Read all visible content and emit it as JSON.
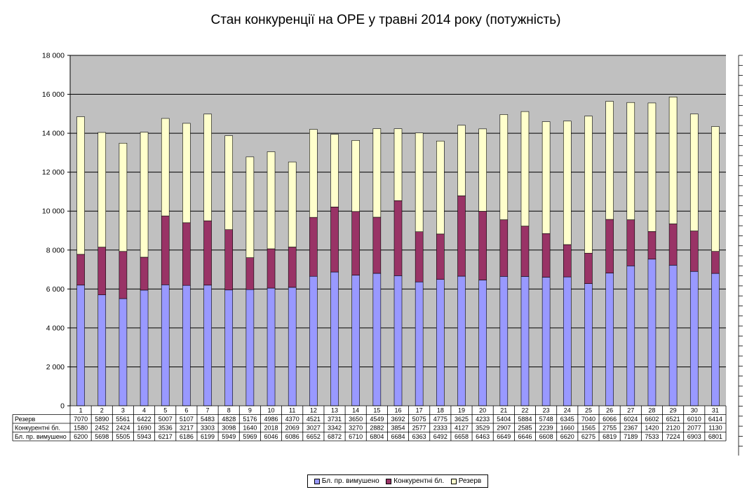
{
  "chart_data": {
    "type": "bar",
    "stacked": true,
    "title": "Стан конкуренції на ОРЕ  у травні 2014 року (потужність)",
    "categories": [
      "1",
      "2",
      "3",
      "4",
      "5",
      "6",
      "7",
      "8",
      "9",
      "10",
      "11",
      "12",
      "13",
      "14",
      "15",
      "16",
      "17",
      "18",
      "19",
      "20",
      "21",
      "22",
      "23",
      "24",
      "25",
      "26",
      "27",
      "28",
      "29",
      "30",
      "31"
    ],
    "series": [
      {
        "name": "Бл. пр. вимушено",
        "color": "#9999FF",
        "values": [
          6200,
          5698,
          5505,
          5943,
          6217,
          6186,
          6199,
          5949,
          5969,
          6046,
          6086,
          6652,
          6872,
          6710,
          6804,
          6684,
          6363,
          6492,
          6658,
          6463,
          6649,
          6646,
          6608,
          6620,
          6275,
          6819,
          7189,
          7533,
          7224,
          6903,
          6801
        ]
      },
      {
        "name": "Конкурентні бл.",
        "color": "#993366",
        "values": [
          1580,
          2452,
          2424,
          1690,
          3536,
          3217,
          3303,
          3098,
          1640,
          2018,
          2069,
          3027,
          3342,
          3270,
          2882,
          3854,
          2577,
          2333,
          4127,
          3529,
          2907,
          2585,
          2239,
          1660,
          1565,
          2755,
          2367,
          1420,
          2120,
          2077,
          1130
        ]
      },
      {
        "name": "Резерв",
        "color": "#FFFFCC",
        "values": [
          7070,
          5890,
          5561,
          6422,
          5007,
          5107,
          5483,
          4828,
          5176,
          4986,
          4370,
          4521,
          3731,
          3650,
          4549,
          3692,
          5075,
          4775,
          3625,
          4233,
          5404,
          5884,
          5748,
          6345,
          7040,
          6066,
          6024,
          6602,
          6521,
          6010,
          6414
        ]
      }
    ],
    "table_rows": [
      {
        "label": "Резерв",
        "series_index": 2
      },
      {
        "label": "Конкурентні бл.",
        "series_index": 1
      },
      {
        "label": "Бл. пр. вимушено",
        "series_index": 0
      }
    ],
    "ylim": [
      0,
      18000
    ],
    "yticks": [
      0,
      2000,
      4000,
      6000,
      8000,
      10000,
      12000,
      14000,
      16000,
      18000
    ],
    "ytick_labels": [
      "0",
      "2 000",
      "4 000",
      "6 000",
      "8 000",
      "10 000",
      "12 000",
      "14 000",
      "16 000",
      "18 000"
    ],
    "grid": true,
    "plot_background": "#C0C0C0",
    "legend_position": "bottom"
  }
}
